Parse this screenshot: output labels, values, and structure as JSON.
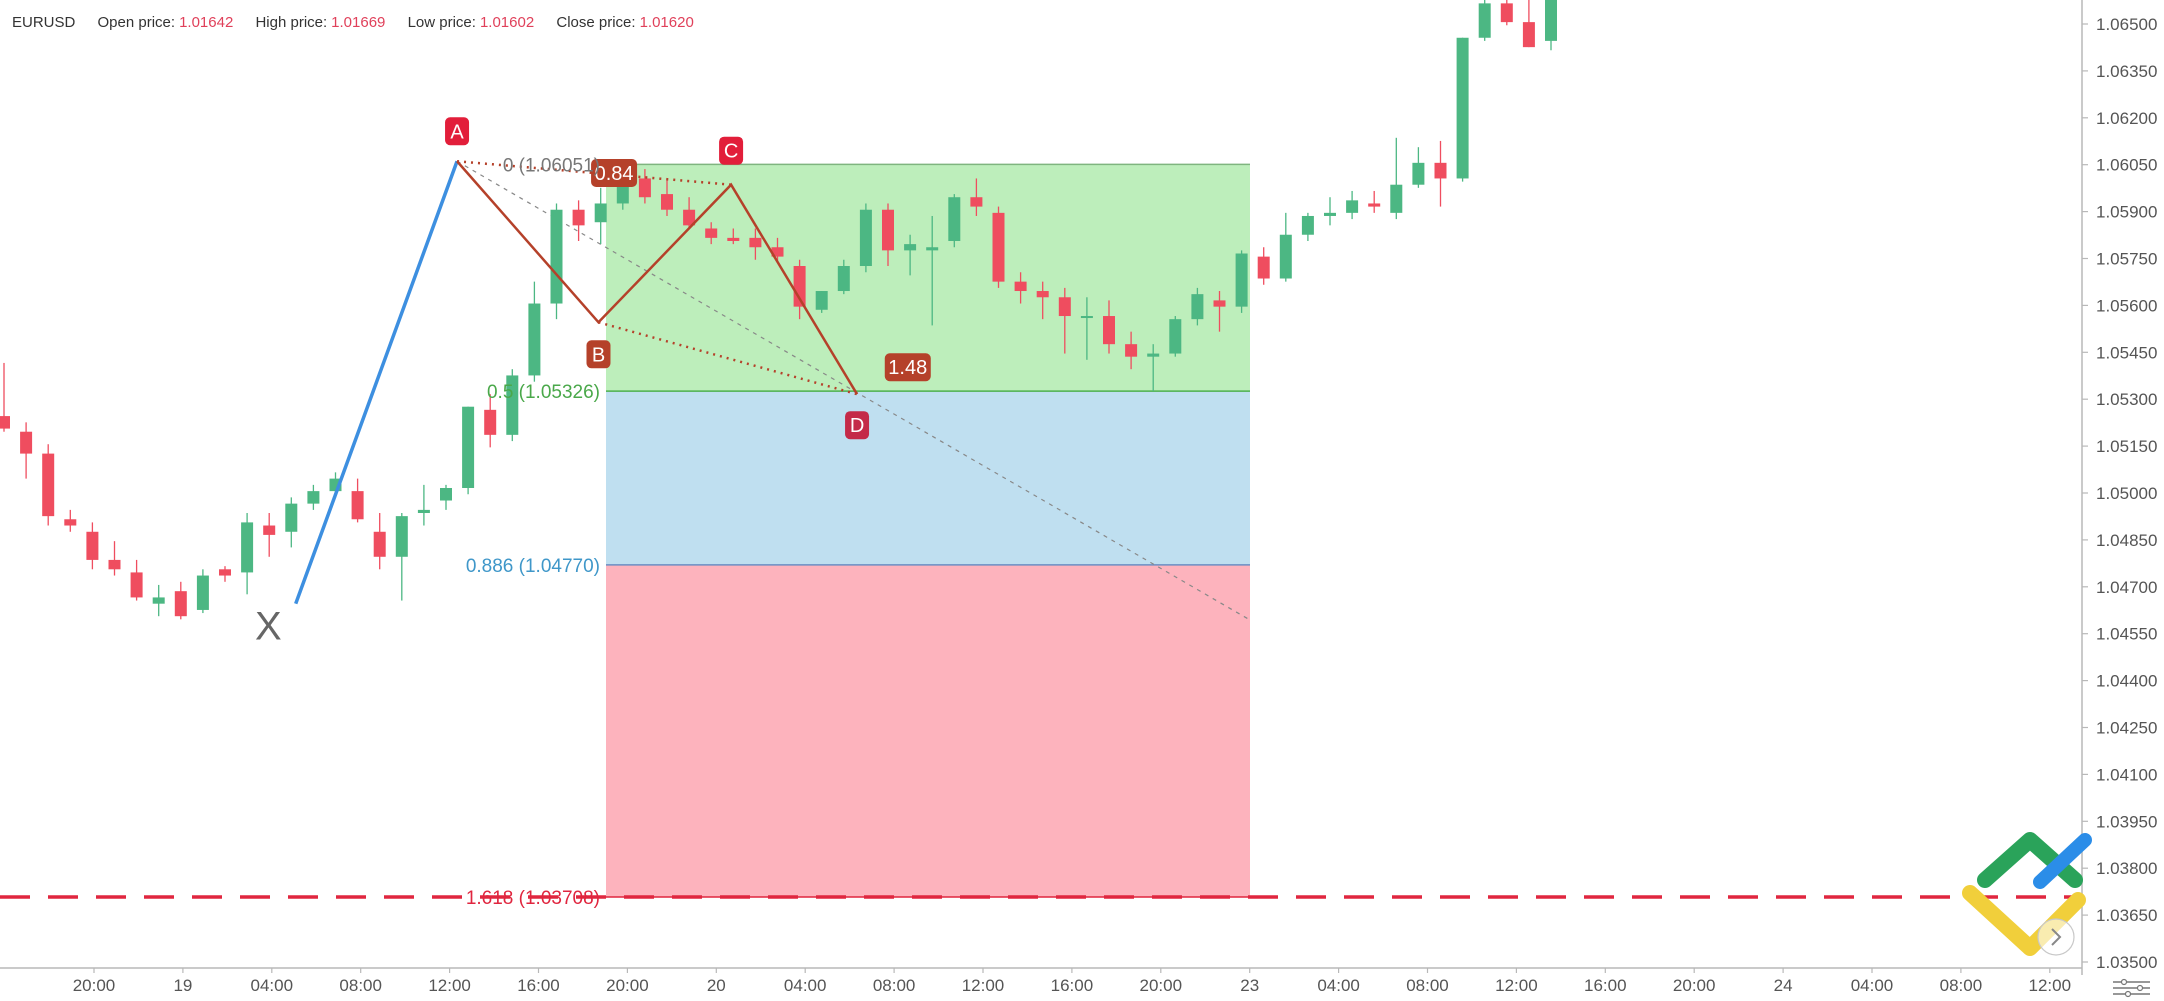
{
  "header": {
    "symbol": "EURUSD",
    "open_label": "Open price:",
    "open_value": "1.01642",
    "high_label": "High price:",
    "high_value": "1.01669",
    "low_label": "Low price:",
    "low_value": "1.01602",
    "close_label": "Close price:",
    "close_value": "1.01620"
  },
  "colors": {
    "bull": "#4cb783",
    "bear": "#ef4d5f",
    "pattern": "#b5412a",
    "xa_leg": "#3d8fe0",
    "zone_green": "#bdeebb",
    "zone_blue": "#bfdff0",
    "zone_red": "#fdb3bd",
    "level_red": "#e0263f"
  },
  "chart_data": {
    "type": "candlestick",
    "price_axis": {
      "ticks": [
        "1.06500",
        "1.06350",
        "1.06200",
        "1.06050",
        "1.05900",
        "1.05750",
        "1.05600",
        "1.05450",
        "1.05300",
        "1.05150",
        "1.05000",
        "1.04850",
        "1.04700",
        "1.04550",
        "1.04400",
        "1.04250",
        "1.04100",
        "1.03950",
        "1.03800",
        "1.03650",
        "1.03500"
      ],
      "range": [
        1.0345,
        1.0658
      ]
    },
    "time_axis": {
      "ticks": [
        "20:00",
        "19",
        "04:00",
        "08:00",
        "12:00",
        "16:00",
        "20:00",
        "20",
        "04:00",
        "08:00",
        "12:00",
        "16:00",
        "20:00",
        "23",
        "04:00",
        "08:00",
        "12:00",
        "16:00",
        "20:00",
        "24",
        "04:00",
        "08:00",
        "12:00"
      ]
    },
    "candles": [
      [
        1.05246,
        1.05416,
        1.05196,
        1.05206
      ],
      [
        1.05196,
        1.05226,
        1.05046,
        1.05126
      ],
      [
        1.05126,
        1.05156,
        1.04896,
        1.04926
      ],
      [
        1.04916,
        1.04946,
        1.04876,
        1.04896
      ],
      [
        1.04876,
        1.04906,
        1.04756,
        1.04786
      ],
      [
        1.04786,
        1.04846,
        1.04736,
        1.04756
      ],
      [
        1.04746,
        1.04786,
        1.04656,
        1.04666
      ],
      [
        1.04646,
        1.04706,
        1.04606,
        1.04666
      ],
      [
        1.04686,
        1.04716,
        1.04596,
        1.04606
      ],
      [
        1.04626,
        1.04756,
        1.04616,
        1.04736
      ],
      [
        1.04756,
        1.04766,
        1.04716,
        1.04736
      ],
      [
        1.04746,
        1.04936,
        1.04676,
        1.04906
      ],
      [
        1.04896,
        1.04936,
        1.04796,
        1.04866
      ],
      [
        1.04876,
        1.04986,
        1.04826,
        1.04966
      ],
      [
        1.04966,
        1.05026,
        1.04946,
        1.05006
      ],
      [
        1.05006,
        1.05066,
        1.04986,
        1.05046
      ],
      [
        1.05006,
        1.05046,
        1.04906,
        1.04916
      ],
      [
        1.04876,
        1.04936,
        1.04756,
        1.04796
      ],
      [
        1.04796,
        1.04936,
        1.04656,
        1.04926
      ],
      [
        1.04936,
        1.05026,
        1.04896,
        1.04946
      ],
      [
        1.04976,
        1.05026,
        1.04946,
        1.05016
      ],
      [
        1.05016,
        1.05276,
        1.04996,
        1.05276
      ],
      [
        1.05266,
        1.05316,
        1.05146,
        1.05186
      ],
      [
        1.05186,
        1.05396,
        1.05166,
        1.05376
      ],
      [
        1.05376,
        1.05676,
        1.05356,
        1.05606
      ],
      [
        1.05606,
        1.05926,
        1.05556,
        1.05906
      ],
      [
        1.05906,
        1.05936,
        1.05806,
        1.05856
      ],
      [
        1.05866,
        1.05976,
        1.05796,
        1.05926
      ],
      [
        1.05926,
        1.06046,
        1.05906,
        1.06016
      ],
      [
        1.06006,
        1.06036,
        1.05926,
        1.05946
      ],
      [
        1.05956,
        1.06006,
        1.05886,
        1.05906
      ],
      [
        1.05906,
        1.05946,
        1.05846,
        1.05856
      ],
      [
        1.05846,
        1.05866,
        1.05796,
        1.05816
      ],
      [
        1.05816,
        1.05846,
        1.05796,
        1.05806
      ],
      [
        1.05816,
        1.05846,
        1.05746,
        1.05786
      ],
      [
        1.05786,
        1.05816,
        1.05736,
        1.05756
      ],
      [
        1.05726,
        1.05746,
        1.05556,
        1.05596
      ],
      [
        1.05586,
        1.05646,
        1.05576,
        1.05646
      ],
      [
        1.05646,
        1.05746,
        1.05636,
        1.05726
      ],
      [
        1.05726,
        1.05926,
        1.05706,
        1.05906
      ],
      [
        1.05906,
        1.05926,
        1.05726,
        1.05776
      ],
      [
        1.05776,
        1.05826,
        1.05696,
        1.05796
      ],
      [
        1.05776,
        1.05886,
        1.05536,
        1.05786
      ],
      [
        1.05806,
        1.05956,
        1.05786,
        1.05946
      ],
      [
        1.05946,
        1.06006,
        1.05886,
        1.05916
      ],
      [
        1.05896,
        1.05916,
        1.05656,
        1.05676
      ],
      [
        1.05676,
        1.05706,
        1.05606,
        1.05646
      ],
      [
        1.05646,
        1.05676,
        1.05556,
        1.05626
      ],
      [
        1.05626,
        1.05656,
        1.05446,
        1.05566
      ],
      [
        1.05566,
        1.05626,
        1.05426,
        1.05566
      ],
      [
        1.05566,
        1.05616,
        1.05446,
        1.05476
      ],
      [
        1.05476,
        1.05516,
        1.05396,
        1.05436
      ],
      [
        1.05436,
        1.05476,
        1.05326,
        1.05446
      ],
      [
        1.05446,
        1.05566,
        1.05436,
        1.05556
      ],
      [
        1.05556,
        1.05656,
        1.05536,
        1.05636
      ],
      [
        1.05616,
        1.05646,
        1.05516,
        1.05596
      ],
      [
        1.05596,
        1.05776,
        1.05576,
        1.05766
      ],
      [
        1.05756,
        1.05786,
        1.05666,
        1.05686
      ],
      [
        1.05686,
        1.05896,
        1.05676,
        1.05826
      ],
      [
        1.05826,
        1.05896,
        1.05806,
        1.05886
      ],
      [
        1.05886,
        1.05946,
        1.05856,
        1.05896
      ],
      [
        1.05896,
        1.05966,
        1.05876,
        1.05936
      ],
      [
        1.05926,
        1.05966,
        1.05896,
        1.05916
      ],
      [
        1.05896,
        1.06136,
        1.05876,
        1.05986
      ],
      [
        1.05986,
        1.06106,
        1.05976,
        1.06056
      ],
      [
        1.06056,
        1.06126,
        1.05916,
        1.06006
      ],
      [
        1.06006,
        1.06456,
        1.05996,
        1.06456
      ],
      [
        1.06456,
        1.06686,
        1.06446,
        1.06566
      ],
      [
        1.06566,
        1.06686,
        1.06496,
        1.06506
      ],
      [
        1.06506,
        1.06606,
        1.06426,
        1.06426
      ],
      [
        1.06446,
        1.06626,
        1.06416,
        1.06596
      ]
    ],
    "harmonic_points": {
      "X": {
        "label": "X",
        "price": 1.04646
      },
      "A": {
        "label": "A",
        "price": 1.06061
      },
      "B": {
        "label": "B",
        "price": 1.05546
      },
      "C": {
        "label": "C",
        "price": 1.05986
      },
      "D": {
        "label": "D",
        "price": 1.05316
      }
    },
    "ratios": {
      "bc": "0.84",
      "cd": "1.48"
    },
    "fib_levels": [
      {
        "label": "0 (1.06051)",
        "price": 1.06051
      },
      {
        "label": "0.5 (1.05326)",
        "price": 1.05326
      },
      {
        "label": "0.886 (1.04770)",
        "price": 1.0477
      },
      {
        "label": "1.618 (1.03708)",
        "price": 1.03708
      }
    ],
    "horizontal_level": 1.03708
  }
}
